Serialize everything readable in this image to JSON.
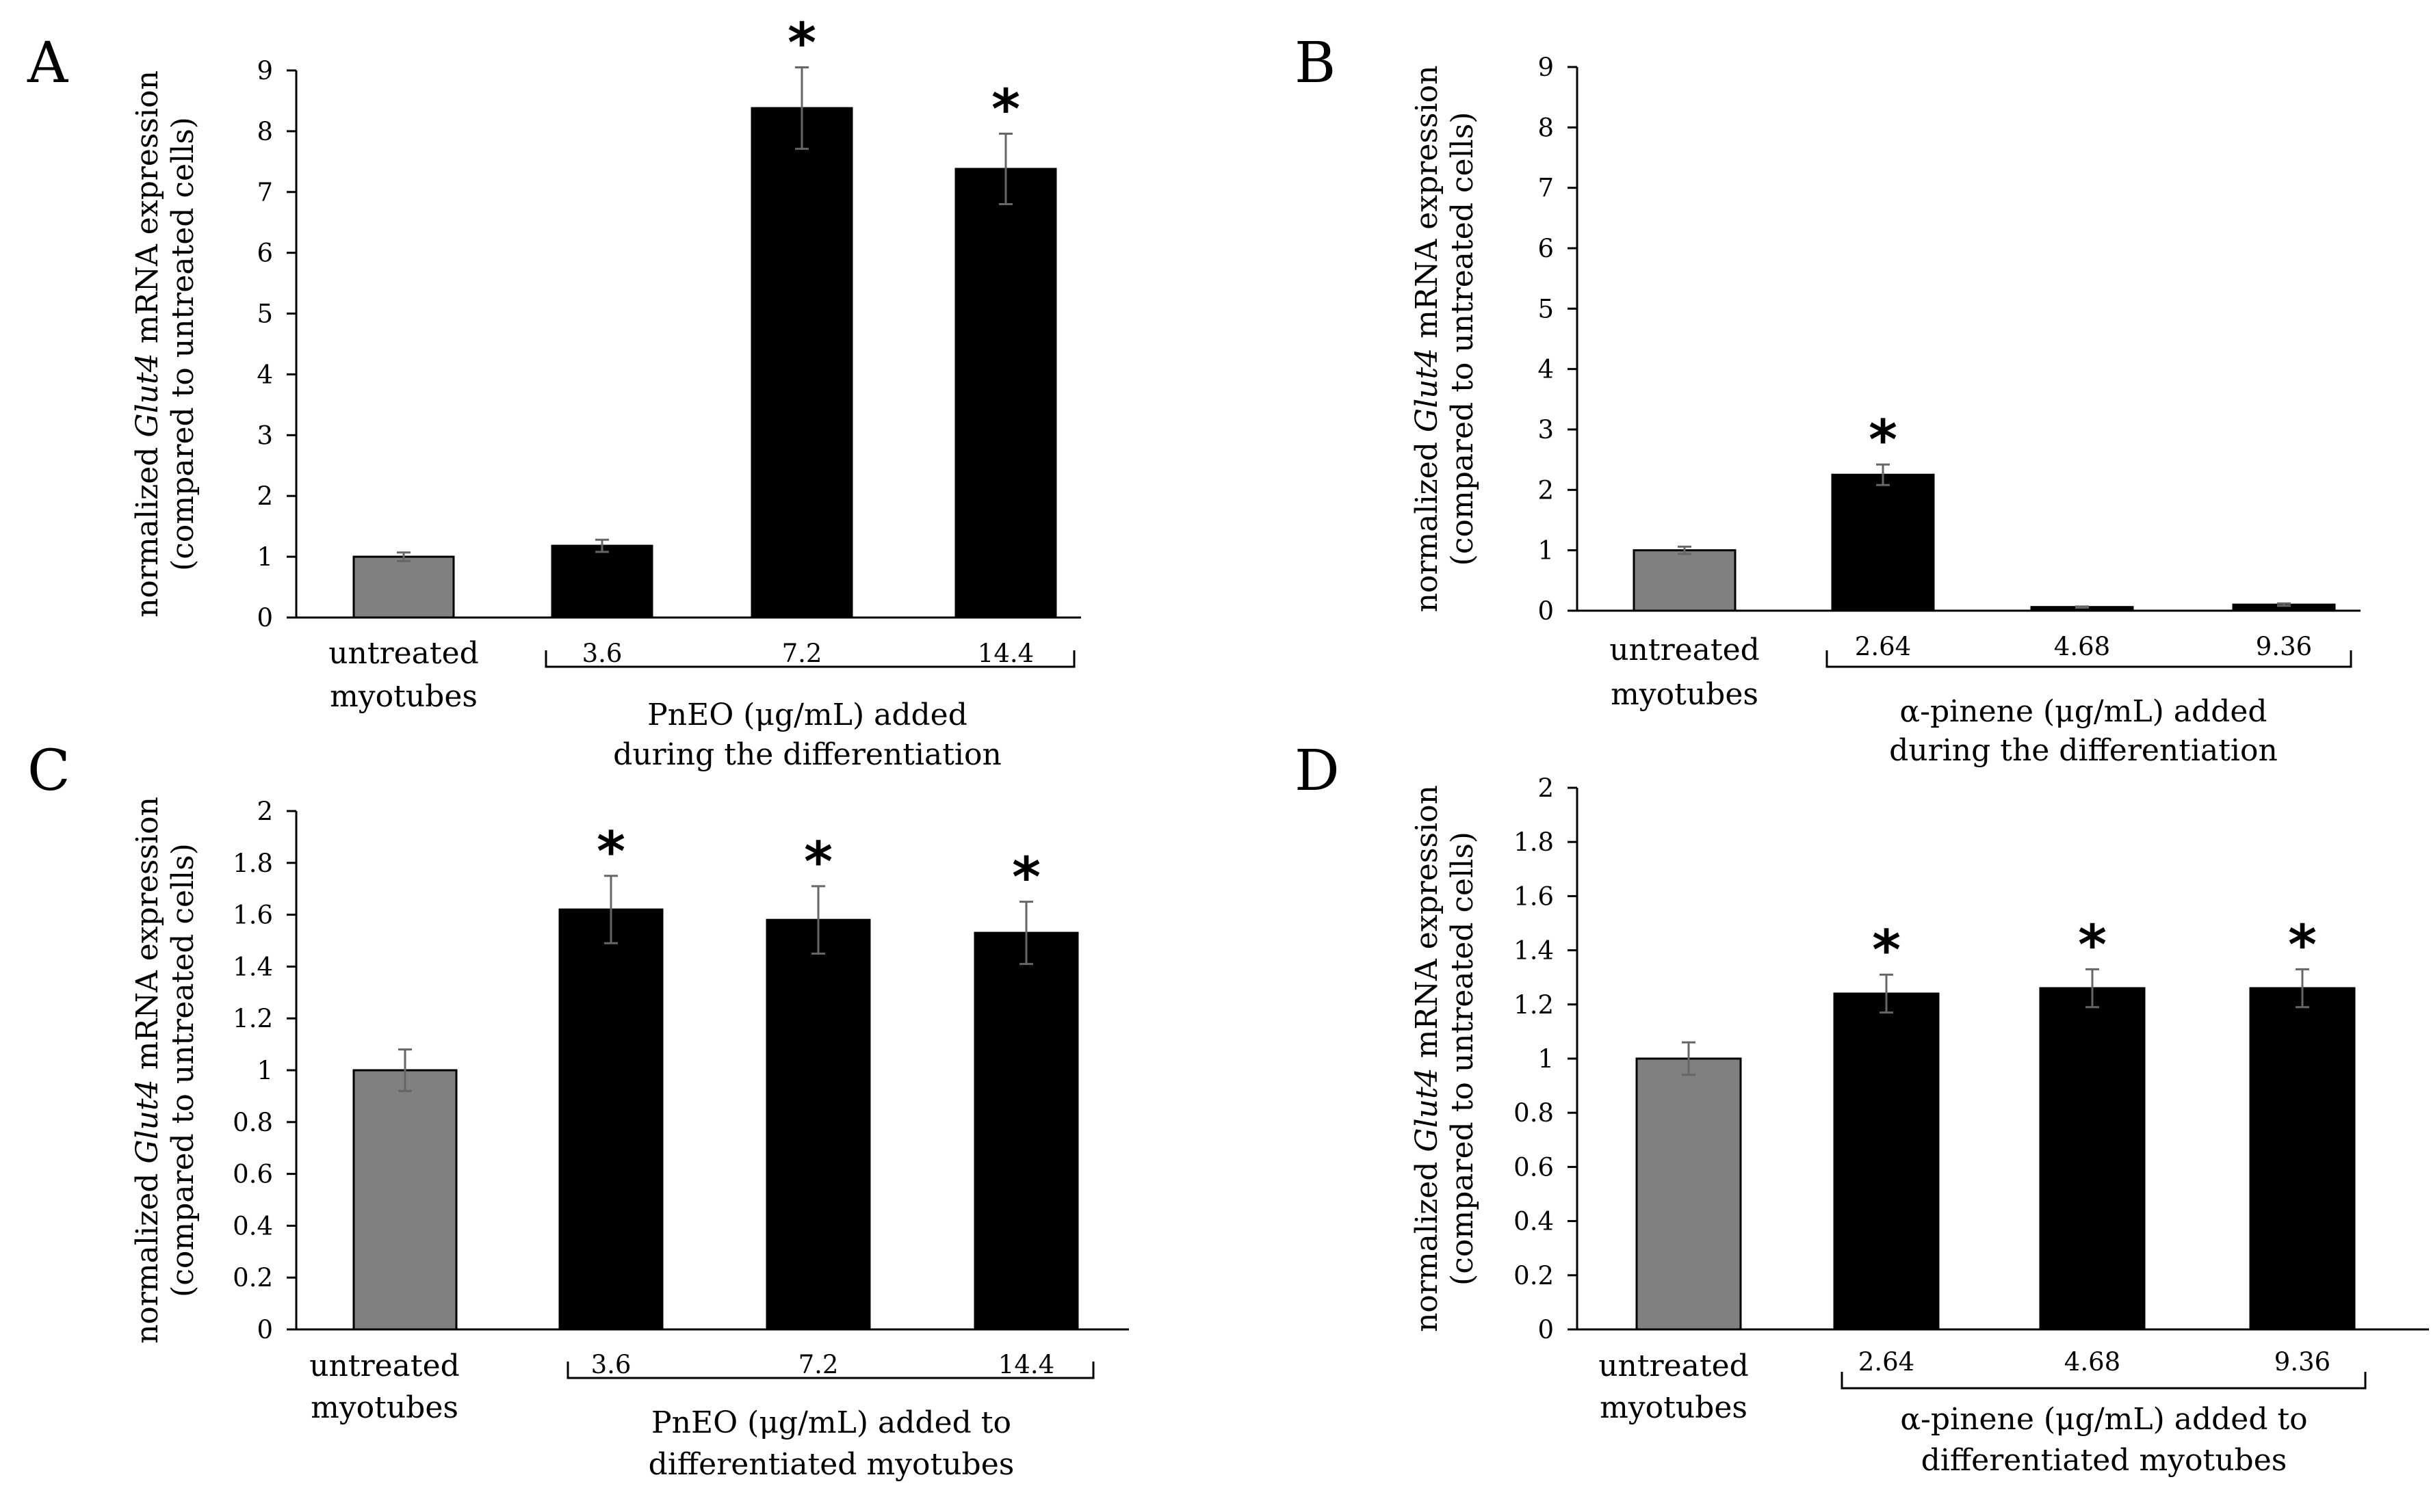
{
  "colors": {
    "control": "#808080",
    "treated": "#000000",
    "error": "#666666"
  },
  "chart_data": [
    {
      "type": "bar",
      "panel_label": "A",
      "ylabel": {
        "prefix": "normalized ",
        "gene": "Glut4",
        "suffix": " mRNA expression",
        "line2": "(compared to untreated cells)"
      },
      "ylim": [
        0,
        9
      ],
      "yticks": [
        "0",
        "1",
        "2",
        "3",
        "4",
        "5",
        "6",
        "7",
        "8",
        "9"
      ],
      "categories": [
        "untreated myotubes",
        "3.6",
        "7.2",
        "14.4"
      ],
      "control_label": {
        "line1": "untreated",
        "line2": "myotubes"
      },
      "values": [
        1.0,
        1.18,
        8.38,
        7.38
      ],
      "errors": [
        0.07,
        0.1,
        0.67,
        0.58
      ],
      "significant": [
        false,
        false,
        true,
        true
      ],
      "significance_marker": "*",
      "group_label": {
        "line1": "PnEO (μg/mL) added",
        "line2": "during the differentiation"
      }
    },
    {
      "type": "bar",
      "panel_label": "B",
      "ylabel": {
        "prefix": "normalized ",
        "gene": "Glut4",
        "suffix": " mRNA expression",
        "line2": "(compared to untreated cells)"
      },
      "ylim": [
        0,
        9
      ],
      "yticks": [
        "0",
        "1",
        "2",
        "3",
        "4",
        "5",
        "6",
        "7",
        "8",
        "9"
      ],
      "categories": [
        "untreated myotubes",
        "2.64",
        "4.68",
        "9.36"
      ],
      "control_label": {
        "line1": "untreated",
        "line2": "myotubes"
      },
      "values": [
        1.0,
        2.25,
        0.06,
        0.1
      ],
      "errors": [
        0.06,
        0.17,
        0.01,
        0.02
      ],
      "significant": [
        false,
        true,
        false,
        false
      ],
      "significance_marker": "*",
      "group_label": {
        "line1": "α-pinene (μg/mL) added",
        "line2": "during the differentiation"
      }
    },
    {
      "type": "bar",
      "panel_label": "C",
      "ylabel": {
        "prefix": "normalized ",
        "gene": "Glut4",
        "suffix": " mRNA expression",
        "line2": "(compared to untreated cells)"
      },
      "ylim": [
        0,
        2
      ],
      "yticks": [
        "0",
        "0.2",
        "0.4",
        "0.6",
        "0.8",
        "1",
        "1.2",
        "1.4",
        "1.6",
        "1.8",
        "2"
      ],
      "categories": [
        "untreated myotubes",
        "3.6",
        "7.2",
        "14.4"
      ],
      "control_label": {
        "line1": "untreated",
        "line2": "myotubes"
      },
      "values": [
        1.0,
        1.62,
        1.58,
        1.53
      ],
      "errors": [
        0.08,
        0.13,
        0.13,
        0.12
      ],
      "significant": [
        false,
        true,
        true,
        true
      ],
      "significance_marker": "*",
      "group_label": {
        "line1": "PnEO (μg/mL) added to",
        "line2": "differentiated myotubes"
      }
    },
    {
      "type": "bar",
      "panel_label": "D",
      "ylabel": {
        "prefix": "normalized ",
        "gene": "Glut4",
        "suffix": " mRNA expression",
        "line2": "(compared to untreated cells)"
      },
      "ylim": [
        0,
        2
      ],
      "yticks": [
        "0",
        "0.2",
        "0.4",
        "0.6",
        "0.8",
        "1",
        "1.2",
        "1.4",
        "1.6",
        "1.8",
        "2"
      ],
      "categories": [
        "untreated myotubes",
        "2.64",
        "4.68",
        "9.36"
      ],
      "control_label": {
        "line1": "untreated",
        "line2": "myotubes"
      },
      "values": [
        1.0,
        1.24,
        1.26,
        1.26
      ],
      "errors": [
        0.06,
        0.07,
        0.07,
        0.07
      ],
      "significant": [
        false,
        true,
        true,
        true
      ],
      "significance_marker": "*",
      "group_label": {
        "line1": "α-pinene (μg/mL) added to",
        "line2": "differentiated myotubes"
      }
    }
  ]
}
